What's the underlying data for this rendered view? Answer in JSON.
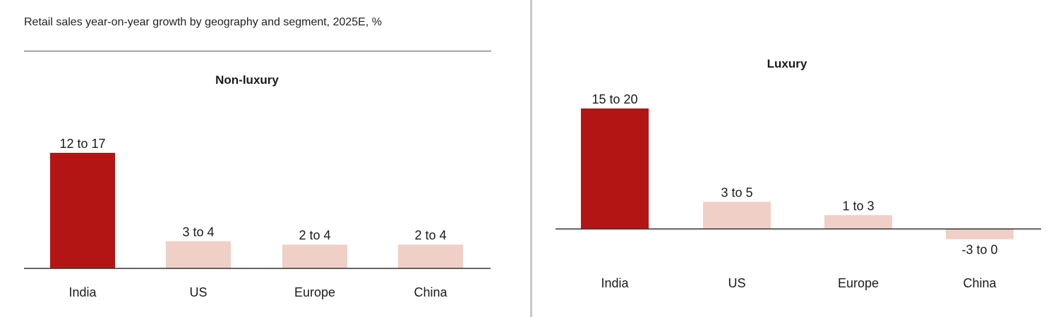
{
  "title": "Retail sales year-on-year growth by geography and segment, 2025E, %",
  "colors": {
    "highlight": "#b31515",
    "muted": "#f0cfc6",
    "axis": "#333333"
  },
  "chart_data": [
    {
      "type": "bar",
      "title": "Non-luxury",
      "categories": [
        "India",
        "US",
        "Europe",
        "China"
      ],
      "labels": [
        "12 to 17",
        "3 to 4",
        "2 to 4",
        "2 to 4"
      ],
      "values": [
        17,
        4,
        3.5,
        3.5
      ],
      "highlight": [
        true,
        false,
        false,
        false
      ],
      "ylim": [
        0,
        17
      ],
      "grid": false
    },
    {
      "type": "bar",
      "title": "Luxury",
      "categories": [
        "India",
        "US",
        "Europe",
        "China"
      ],
      "labels": [
        "15 to 20",
        "3 to 5",
        "1 to 3",
        "-3 to 0"
      ],
      "values": [
        20,
        4.5,
        2.3,
        -1.7
      ],
      "highlight": [
        true,
        false,
        false,
        false
      ],
      "ylim": [
        -3,
        20
      ],
      "grid": false
    }
  ]
}
